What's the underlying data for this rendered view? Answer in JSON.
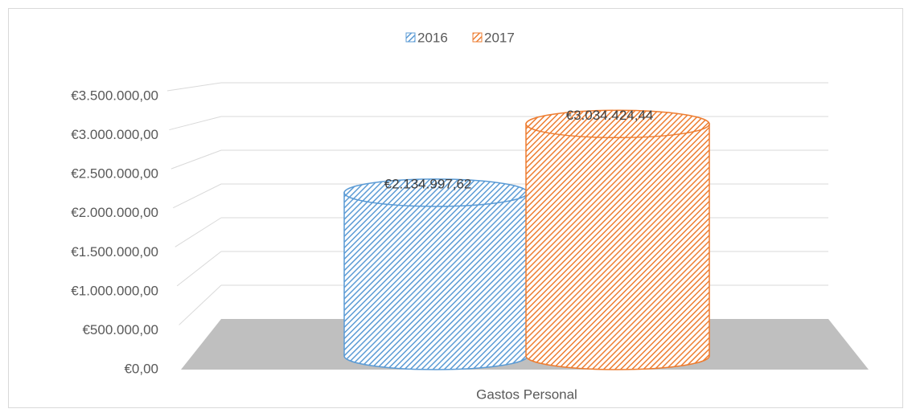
{
  "chart_data": {
    "type": "bar3d",
    "categories": [
      "Gastos Personal"
    ],
    "series": [
      {
        "name": "2016",
        "color": "#5b9bd5",
        "values": [
          2134997.62
        ],
        "value_labels": [
          "€2.134.997,62"
        ]
      },
      {
        "name": "2017",
        "color": "#ed7d31",
        "values": [
          3034424.44
        ],
        "value_labels": [
          "€3.034.424,44"
        ]
      }
    ],
    "ylim": [
      0,
      3500000
    ],
    "yticks": [
      {
        "value": 0,
        "label": "€0,00"
      },
      {
        "value": 500000,
        "label": "€500.000,00"
      },
      {
        "value": 1000000,
        "label": "€1.000.000,00"
      },
      {
        "value": 1500000,
        "label": "€1.500.000,00"
      },
      {
        "value": 2000000,
        "label": "€2.000.000,00"
      },
      {
        "value": 2500000,
        "label": "€2.500.000,00"
      },
      {
        "value": 3000000,
        "label": "€3.000.000,00"
      },
      {
        "value": 3500000,
        "label": "€3.500.000,00"
      }
    ],
    "grid": true,
    "legend": "top"
  }
}
